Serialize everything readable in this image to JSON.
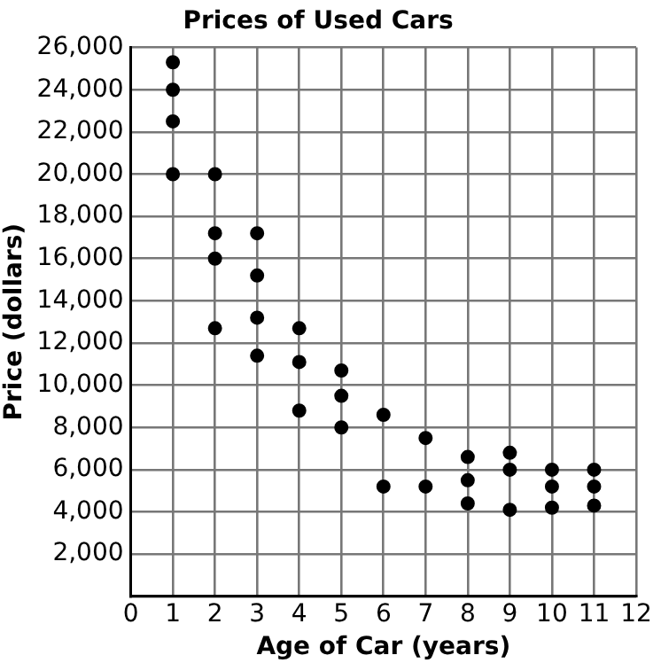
{
  "chart_data": {
    "type": "scatter",
    "title": "Prices of Used Cars",
    "xlabel": "Age of Car (years)",
    "ylabel": "Price (dollars)",
    "x": [
      1,
      1,
      1,
      1,
      2,
      2,
      2,
      2,
      3,
      3,
      3,
      3,
      4,
      4,
      4,
      5,
      5,
      5,
      6,
      6,
      7,
      7,
      8,
      8,
      8,
      9,
      9,
      9,
      10,
      10,
      10,
      11,
      11,
      11
    ],
    "series": [
      {
        "color": "#000000",
        "values": [
          25300,
          24000,
          22500,
          20000,
          20000,
          17200,
          16000,
          12700,
          17200,
          15200,
          13200,
          11400,
          12700,
          11100,
          8800,
          10700,
          9500,
          8000,
          8600,
          5200,
          7500,
          5200,
          6600,
          5500,
          4400,
          6800,
          6000,
          4100,
          6000,
          5200,
          4200,
          6000,
          5200,
          4300
        ]
      }
    ],
    "xlim": [
      0,
      12
    ],
    "xticks": [
      0,
      1,
      2,
      3,
      4,
      5,
      6,
      7,
      8,
      9,
      10,
      11,
      12
    ],
    "ylim": [
      0,
      26000
    ],
    "yticks": [
      {
        "value": 0,
        "label": null
      },
      {
        "value": 2000,
        "label": "2,000"
      },
      {
        "value": 4000,
        "label": "4,000"
      },
      {
        "value": 6000,
        "label": "6,000"
      },
      {
        "value": 8000,
        "label": "8,000"
      },
      {
        "value": 10000,
        "label": "10,000"
      },
      {
        "value": 12000,
        "label": "12,000"
      },
      {
        "value": 14000,
        "label": "14,000"
      },
      {
        "value": 16000,
        "label": "16,000"
      },
      {
        "value": 18000,
        "label": "18,000"
      },
      {
        "value": 20000,
        "label": "20,000"
      },
      {
        "value": 22000,
        "label": "22,000"
      },
      {
        "value": 24000,
        "label": "24,000"
      },
      {
        "value": 26000,
        "label": "26,000"
      }
    ],
    "grid": true,
    "marker": "circle",
    "legend": false
  }
}
